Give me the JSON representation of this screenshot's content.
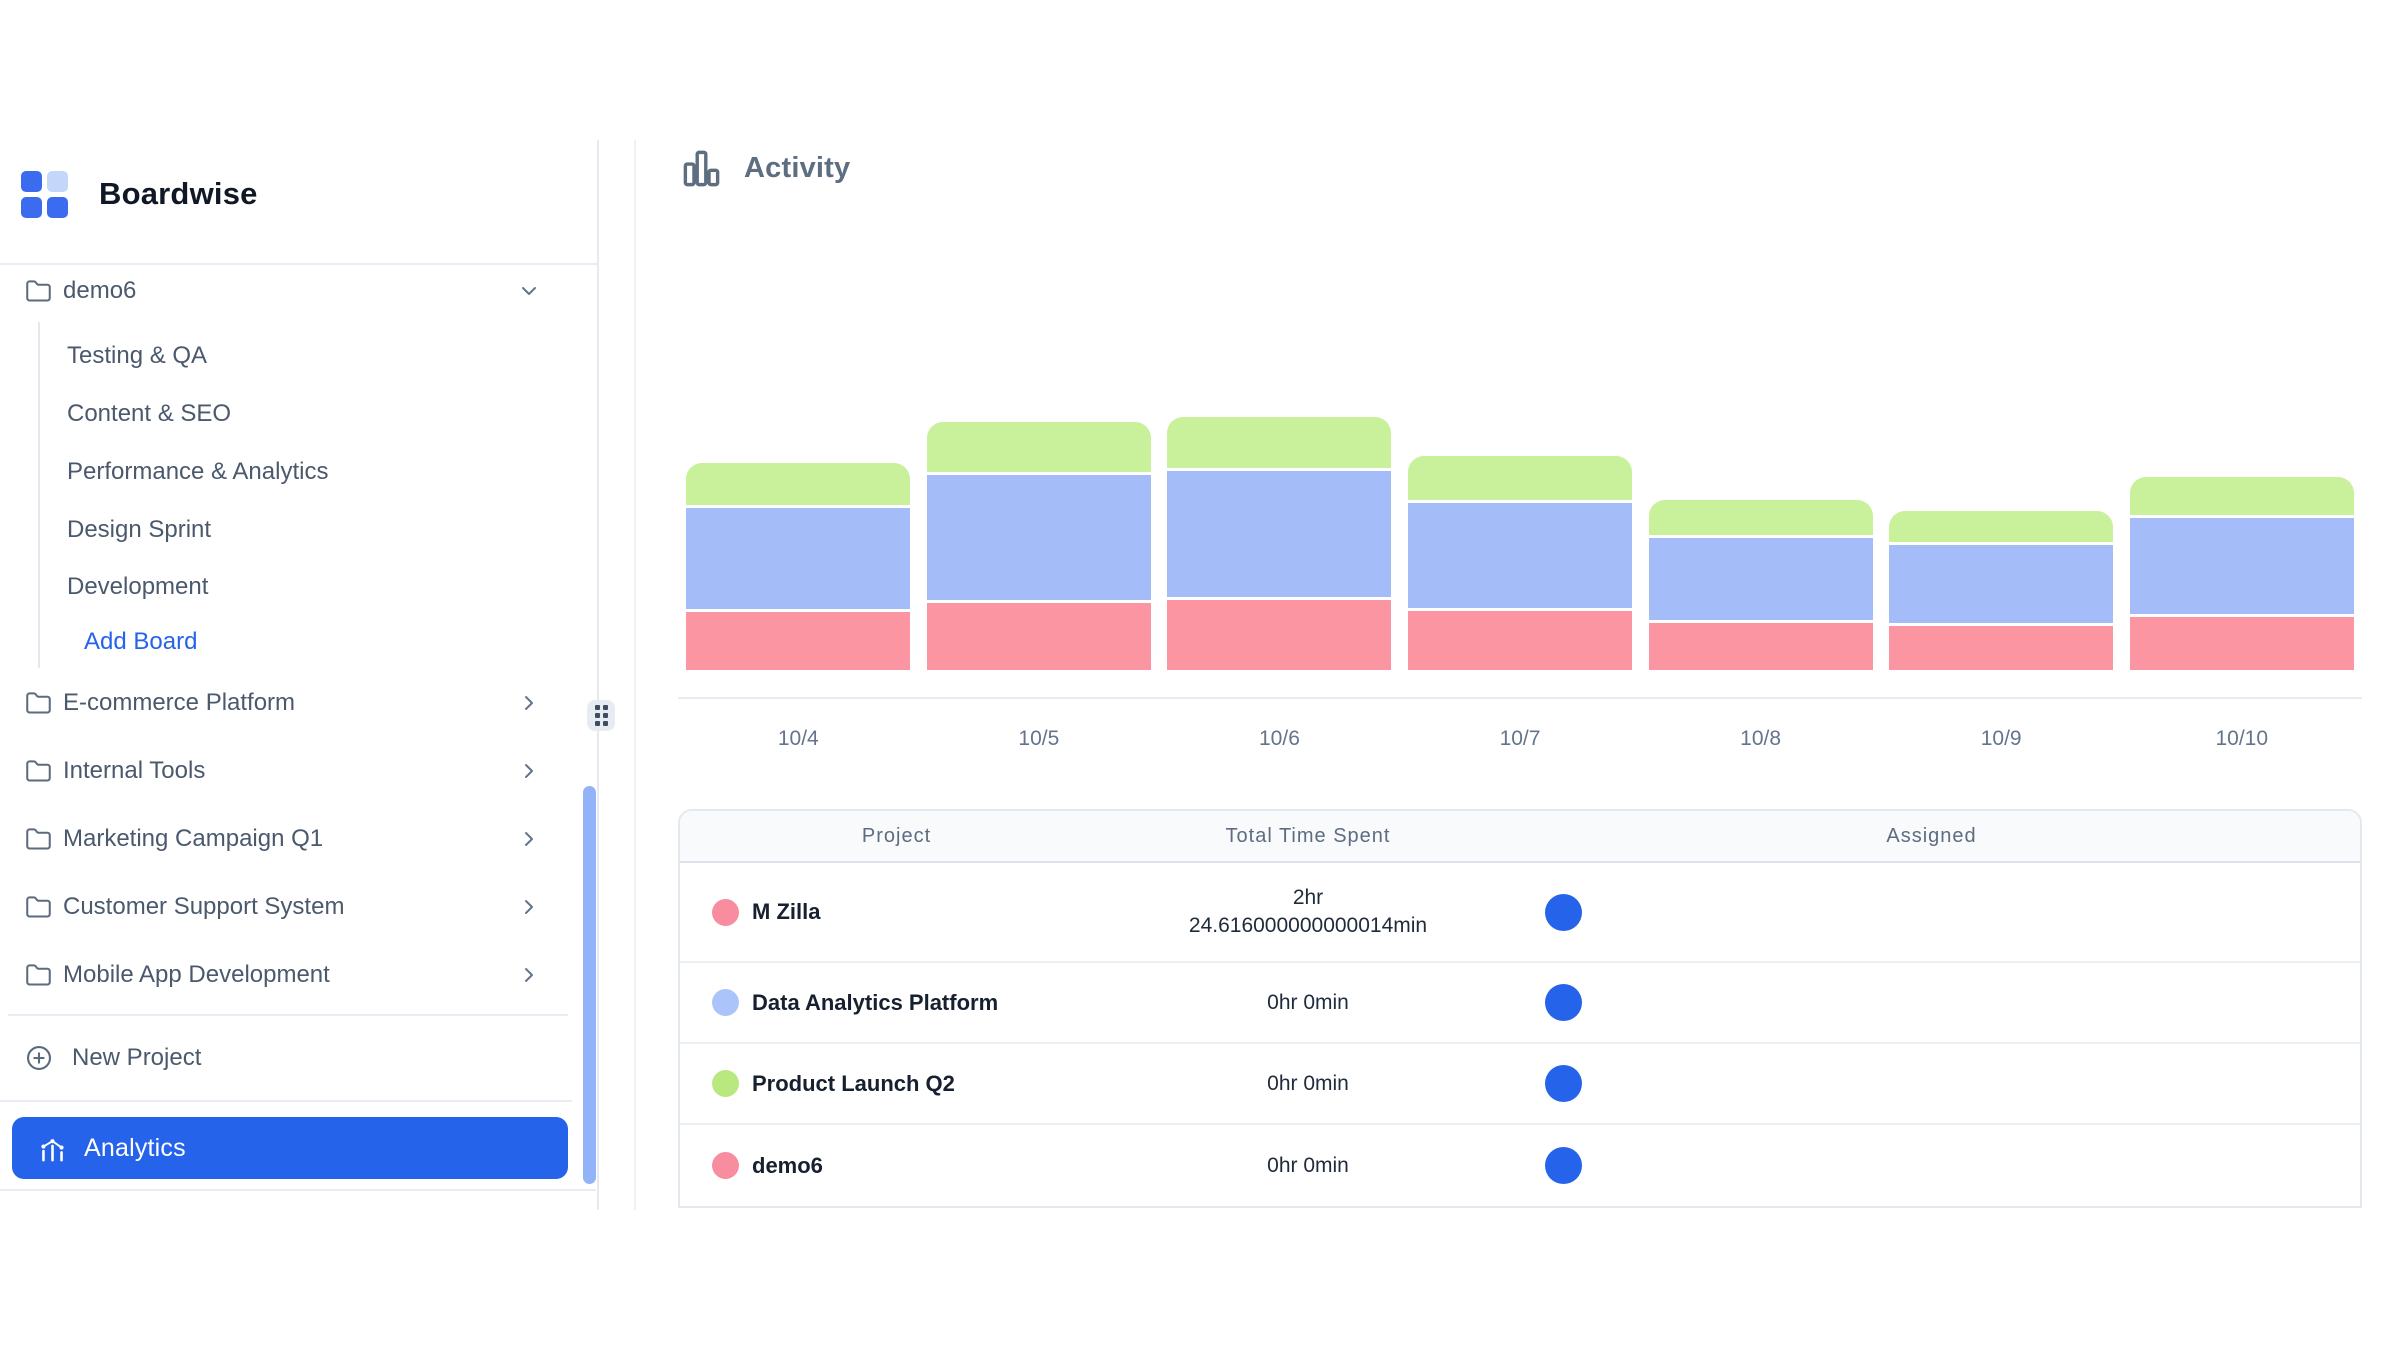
{
  "app": {
    "name": "Boardwise"
  },
  "colors": {
    "accent_blue": "#2563eb",
    "link_blue": "#2563eb",
    "avatar_blue": "#2563eb",
    "scrollbar_blue": "#93b3f8",
    "logo_blue": "#3b6cf0",
    "logo_blue_light": "#c5d6fb",
    "bar_red": "#fb95a1",
    "bar_blue": "#a4bdf8",
    "bar_green": "#c9f19c"
  },
  "sidebar": {
    "expanded_project": {
      "name": "demo6",
      "boards": [
        "Testing & QA",
        "Content & SEO",
        "Performance & Analytics",
        "Design Sprint",
        "Development"
      ],
      "add_board_label": "Add Board"
    },
    "collapsed_projects": [
      "E-commerce Platform",
      "Internal Tools",
      "Marketing Campaign Q1",
      "Customer Support System",
      "Mobile App Development"
    ],
    "new_project_label": "New Project",
    "analytics_label": "Analytics"
  },
  "main": {
    "section_title": "Activity",
    "table": {
      "columns": [
        "Project",
        "Total Time Spent",
        "Assigned"
      ],
      "rows": [
        {
          "name": "M Zilla",
          "dot_color": "#f98da0",
          "time_line_1": "2hr",
          "time_line_2": "24.616000000000014min"
        },
        {
          "name": "Data Analytics Platform",
          "dot_color": "#abc4fa",
          "time_line_1": "0hr 0min",
          "time_line_2": ""
        },
        {
          "name": "Product Launch Q2",
          "dot_color": "#b9e97e",
          "time_line_1": "0hr 0min",
          "time_line_2": ""
        },
        {
          "name": "demo6",
          "dot_color": "#f98da0",
          "time_line_1": "0hr 0min",
          "time_line_2": ""
        }
      ]
    }
  },
  "chart_data": {
    "type": "bar",
    "stacked": true,
    "title": "Activity",
    "xlabel": "",
    "ylabel": "",
    "grid": false,
    "legend": "none",
    "categories": [
      "10/4",
      "10/5",
      "10/6",
      "10/7",
      "10/8",
      "10/9",
      "10/10"
    ],
    "series": [
      {
        "name": "M Zilla",
        "color": "#fb95a1",
        "stack_order": "bottom",
        "values": [
          58,
          67,
          70,
          59,
          47,
          44,
          53
        ]
      },
      {
        "name": "Data Analytics Platform",
        "color": "#a4bdf8",
        "stack_order": "middle",
        "values": [
          101,
          125,
          126,
          105,
          82,
          78,
          96
        ]
      },
      {
        "name": "Product Launch Q2",
        "color": "#c9f19c",
        "stack_order": "top",
        "values": [
          42,
          50,
          51,
          44,
          35,
          31,
          38
        ]
      }
    ],
    "value_units": "estimated relative height (px at 2400px render, no value axis shown)"
  }
}
